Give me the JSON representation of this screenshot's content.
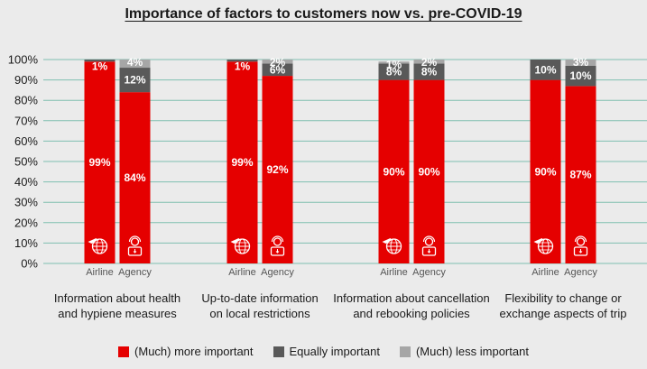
{
  "title": "Importance of factors to customers now vs. pre-COVID-19",
  "colors": {
    "more": "#e50000",
    "equal": "#595959",
    "less": "#a6a6a6",
    "gridline": "#7fbfb0"
  },
  "legend": {
    "more": "(Much) more important",
    "equal": "Equally important",
    "less": "(Much) less important"
  },
  "chart_data": {
    "type": "bar",
    "stacked": true,
    "ylim": [
      0,
      100
    ],
    "yticks": [
      "0%",
      "10%",
      "20%",
      "30%",
      "40%",
      "50%",
      "60%",
      "70%",
      "80%",
      "90%",
      "100%"
    ],
    "groups": [
      {
        "label": "Information about health and hypiene measures",
        "label_lines": [
          "Information about health",
          "and hypiene measures"
        ],
        "bars": [
          {
            "category": "Airline",
            "icon": "airplane-globe-icon",
            "more": 99,
            "equal": 1,
            "less": 0,
            "labels": {
              "more": "99%",
              "equal": "1%",
              "less": ""
            }
          },
          {
            "category": "Agency",
            "icon": "travel-agent-icon",
            "more": 84,
            "equal": 12,
            "less": 4,
            "labels": {
              "more": "84%",
              "equal": "12%",
              "less": "4%"
            }
          }
        ]
      },
      {
        "label": "Up-to-date information on local restrictions",
        "label_lines": [
          "Up-to-date information",
          "on local restrictions"
        ],
        "bars": [
          {
            "category": "Airline",
            "icon": "airplane-globe-icon",
            "more": 99,
            "equal": 1,
            "less": 0,
            "labels": {
              "more": "99%",
              "equal": "1%",
              "less": ""
            }
          },
          {
            "category": "Agency",
            "icon": "travel-agent-icon",
            "more": 92,
            "equal": 6,
            "less": 2,
            "labels": {
              "more": "92%",
              "equal": "6%",
              "less": "2%"
            }
          }
        ]
      },
      {
        "label": "Information about cancellation and rebooking policies",
        "label_lines": [
          "Information about cancellation",
          "and rebooking policies"
        ],
        "bars": [
          {
            "category": "Airline",
            "icon": "airplane-globe-icon",
            "more": 90,
            "equal": 8,
            "less": 1,
            "labels": {
              "more": "90%",
              "equal": "8%",
              "less": "1%"
            }
          },
          {
            "category": "Agency",
            "icon": "travel-agent-icon",
            "more": 90,
            "equal": 8,
            "less": 2,
            "labels": {
              "more": "90%",
              "equal": "8%",
              "less": "2%"
            }
          }
        ]
      },
      {
        "label": "Flexibility to change or exchange aspects of trip",
        "label_lines": [
          "Flexibility to change or",
          "exchange aspects of trip"
        ],
        "bars": [
          {
            "category": "Airline",
            "icon": "airplane-globe-icon",
            "more": 90,
            "equal": 10,
            "less": 0,
            "labels": {
              "more": "90%",
              "equal": "10%",
              "less": ""
            }
          },
          {
            "category": "Agency",
            "icon": "travel-agent-icon",
            "more": 87,
            "equal": 10,
            "less": 3,
            "labels": {
              "more": "87%",
              "equal": "10%",
              "less": "3%"
            }
          }
        ]
      }
    ]
  }
}
